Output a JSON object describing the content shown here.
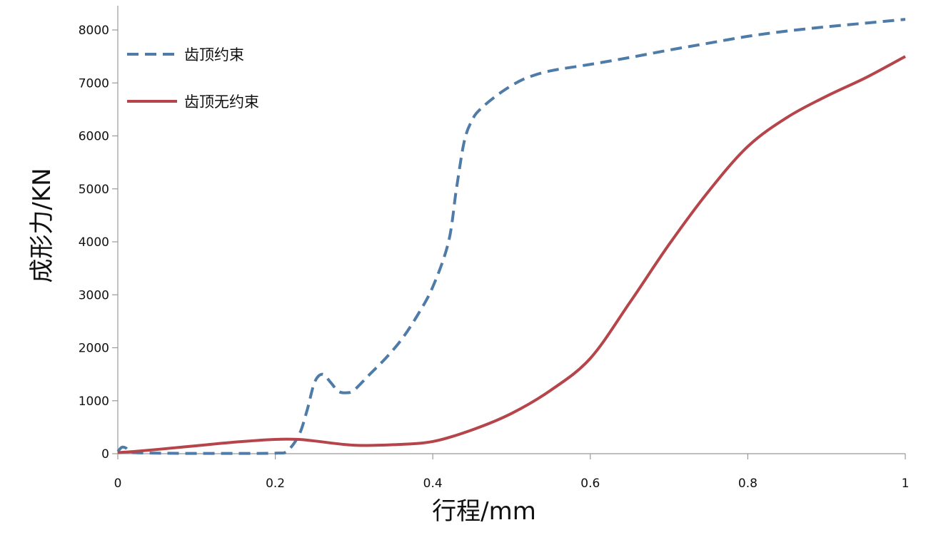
{
  "chart_data": {
    "type": "line",
    "xlabel": "行程/mm",
    "ylabel": "成形力/KN",
    "xlim": [
      0,
      1
    ],
    "ylim": [
      0,
      8000
    ],
    "x_ticks": [
      0,
      0.2,
      0.4,
      0.6,
      0.8,
      1
    ],
    "x_tick_labels": [
      "0",
      "0.2",
      "0.4",
      "0.6",
      "0.8",
      "1"
    ],
    "y_ticks": [
      0,
      1000,
      2000,
      3000,
      4000,
      5000,
      6000,
      7000,
      8000
    ],
    "y_tick_labels": [
      "0",
      "1000",
      "2000",
      "3000",
      "4000",
      "5000",
      "6000",
      "7000",
      "8000"
    ],
    "grid": false,
    "legend_position": "top-left",
    "series": [
      {
        "name": "齿顶约束",
        "color": "#4E7BA8",
        "style": "dashed",
        "x": [
          0.0,
          0.005,
          0.01,
          0.015,
          0.02,
          0.05,
          0.1,
          0.15,
          0.2,
          0.215,
          0.23,
          0.24,
          0.25,
          0.26,
          0.27,
          0.28,
          0.29,
          0.3,
          0.32,
          0.34,
          0.36,
          0.38,
          0.4,
          0.42,
          0.43,
          0.44,
          0.45,
          0.46,
          0.48,
          0.5,
          0.52,
          0.55,
          0.6,
          0.65,
          0.7,
          0.75,
          0.8,
          0.85,
          0.9,
          0.95,
          1.0
        ],
        "y": [
          40,
          120,
          110,
          40,
          20,
          10,
          5,
          5,
          10,
          50,
          350,
          800,
          1350,
          1500,
          1350,
          1180,
          1150,
          1200,
          1500,
          1800,
          2150,
          2600,
          3150,
          4000,
          5000,
          5900,
          6300,
          6500,
          6750,
          6950,
          7100,
          7230,
          7350,
          7480,
          7620,
          7750,
          7880,
          7980,
          8060,
          8130,
          8200
        ]
      },
      {
        "name": "齿顶无约束",
        "color": "#B5454A",
        "style": "solid",
        "x": [
          0.0,
          0.02,
          0.05,
          0.1,
          0.15,
          0.2,
          0.23,
          0.25,
          0.3,
          0.35,
          0.4,
          0.45,
          0.5,
          0.55,
          0.6,
          0.65,
          0.7,
          0.75,
          0.8,
          0.85,
          0.9,
          0.95,
          1.0
        ],
        "y": [
          20,
          40,
          80,
          150,
          220,
          270,
          270,
          240,
          160,
          170,
          230,
          450,
          760,
          1200,
          1800,
          2850,
          3950,
          4950,
          5800,
          6350,
          6750,
          7100,
          7500
        ]
      }
    ]
  }
}
